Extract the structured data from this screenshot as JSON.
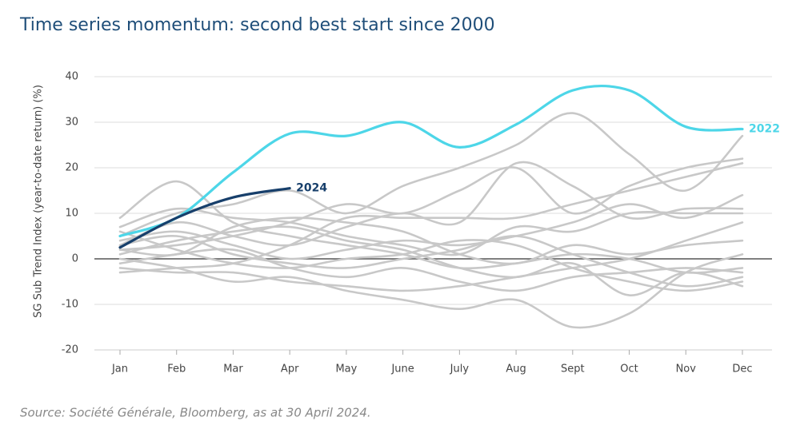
{
  "chart_data": {
    "type": "line",
    "title": "Time series momentum: second best start since 2000",
    "y_label": "SG Sub Trend Index  (year-to-date return) (%)",
    "source": "Source: Société Générale, Bloomberg, as at 30 April 2024.",
    "categories": [
      "Jan",
      "Feb",
      "Mar",
      "Apr",
      "May",
      "June",
      "July",
      "Aug",
      "Sept",
      "Oct",
      "Nov",
      "Dec"
    ],
    "ylim": [
      -20,
      40
    ],
    "yticks": [
      -20,
      -10,
      0,
      10,
      20,
      30,
      40
    ],
    "grid": true,
    "series": [
      {
        "color": "#c8c8c8",
        "values": [
          9,
          17,
          8,
          5,
          3,
          1,
          -2,
          -1,
          1,
          0,
          -3,
          -2
        ]
      },
      {
        "color": "#c8c8c8",
        "values": [
          5,
          10,
          12,
          15,
          10,
          16,
          20,
          25,
          32,
          23,
          15,
          27
        ]
      },
      {
        "color": "#c8c8c8",
        "values": [
          3,
          8,
          5,
          3,
          7,
          10,
          8,
          21,
          16,
          9,
          11,
          11
        ]
      },
      {
        "color": "#c8c8c8",
        "values": [
          2,
          3,
          5,
          8,
          12,
          10,
          15,
          20,
          10,
          16,
          20,
          22
        ]
      },
      {
        "color": "#c8c8c8",
        "values": [
          1,
          4,
          6,
          7,
          4,
          2,
          -2,
          -4,
          -1,
          -8,
          -3,
          -6
        ]
      },
      {
        "color": "#c8c8c8",
        "values": [
          0,
          -2,
          -5,
          -4,
          -7,
          -9,
          -11,
          -9,
          -15,
          -12,
          -3,
          1
        ]
      },
      {
        "color": "#c8c8c8",
        "values": [
          -2,
          -3,
          -3,
          -5,
          -6,
          -7,
          -6,
          -4,
          -2,
          0,
          4,
          8
        ]
      },
      {
        "color": "#c8c8c8",
        "values": [
          4,
          6,
          3,
          0,
          2,
          4,
          3,
          5,
          8,
          12,
          9,
          14
        ]
      },
      {
        "color": "#c8c8c8",
        "values": [
          -3,
          -2,
          -1,
          3,
          9,
          9,
          9,
          9,
          12,
          15,
          18,
          21
        ]
      },
      {
        "color": "#c8c8c8",
        "values": [
          6,
          2,
          -1,
          -2,
          0,
          1,
          4,
          3,
          -2,
          -5,
          -7,
          -5
        ]
      },
      {
        "color": "#c8c8c8",
        "values": [
          2,
          1,
          7,
          9,
          8,
          6,
          1,
          -1,
          3,
          1,
          3,
          4
        ]
      },
      {
        "color": "#c8c8c8",
        "values": [
          -1,
          1,
          2,
          -2,
          -4,
          -2,
          -5,
          -7,
          -4,
          -3,
          -2,
          -3
        ]
      },
      {
        "color": "#c8c8c8",
        "values": [
          7,
          11,
          9,
          8,
          5,
          3,
          1,
          7,
          6,
          10,
          10,
          10
        ]
      },
      {
        "color": "#c8c8c8",
        "values": [
          3,
          5,
          1,
          -1,
          -2,
          0,
          2,
          5,
          1,
          -3,
          -6,
          -4
        ]
      },
      {
        "name": "2022",
        "color": "#4dd6e8",
        "values": [
          5,
          9,
          19,
          27.5,
          27,
          30,
          24.5,
          29.5,
          37,
          37,
          29,
          28.5
        ]
      },
      {
        "name": "2024",
        "color": "#173f6b",
        "values": [
          2.5,
          9,
          13.5,
          15.5,
          null,
          null,
          null,
          null,
          null,
          null,
          null,
          null
        ]
      }
    ]
  }
}
